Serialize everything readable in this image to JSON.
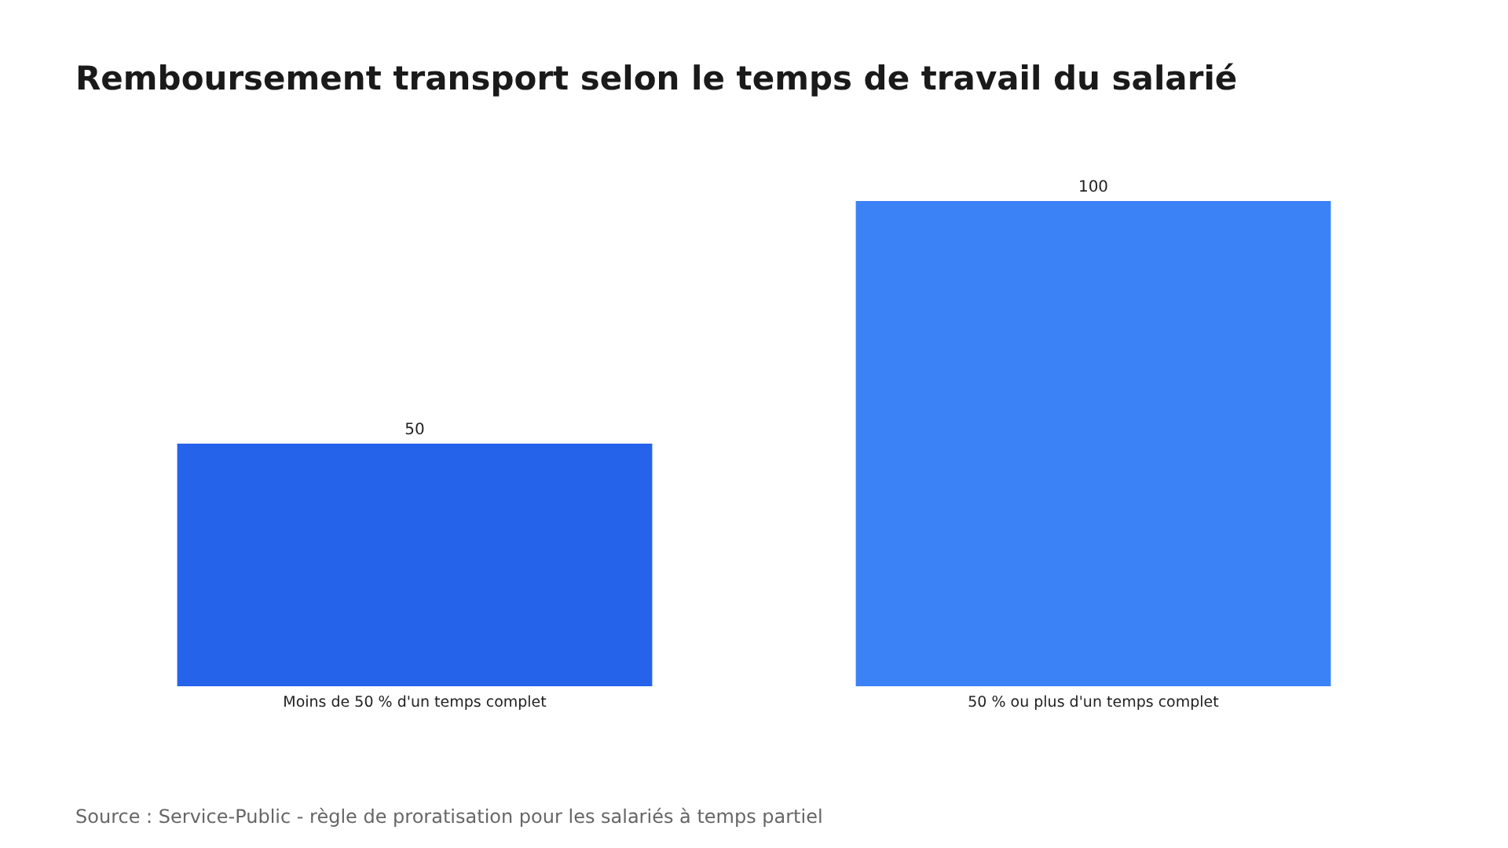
{
  "chart_data": {
    "type": "bar",
    "title": "Remboursement transport selon le temps de travail du salarié",
    "categories": [
      "Moins de 50 % d'un temps complet",
      "50 % ou plus d'un temps complet"
    ],
    "values": [
      50,
      100
    ],
    "colors": [
      "#2563eb",
      "#3b82f6"
    ],
    "ylim": [
      0,
      100
    ],
    "data_labels": true,
    "annotations": [
      "Source : Service-Public - règle de proratisation pour les salariés à temps partiel"
    ]
  }
}
